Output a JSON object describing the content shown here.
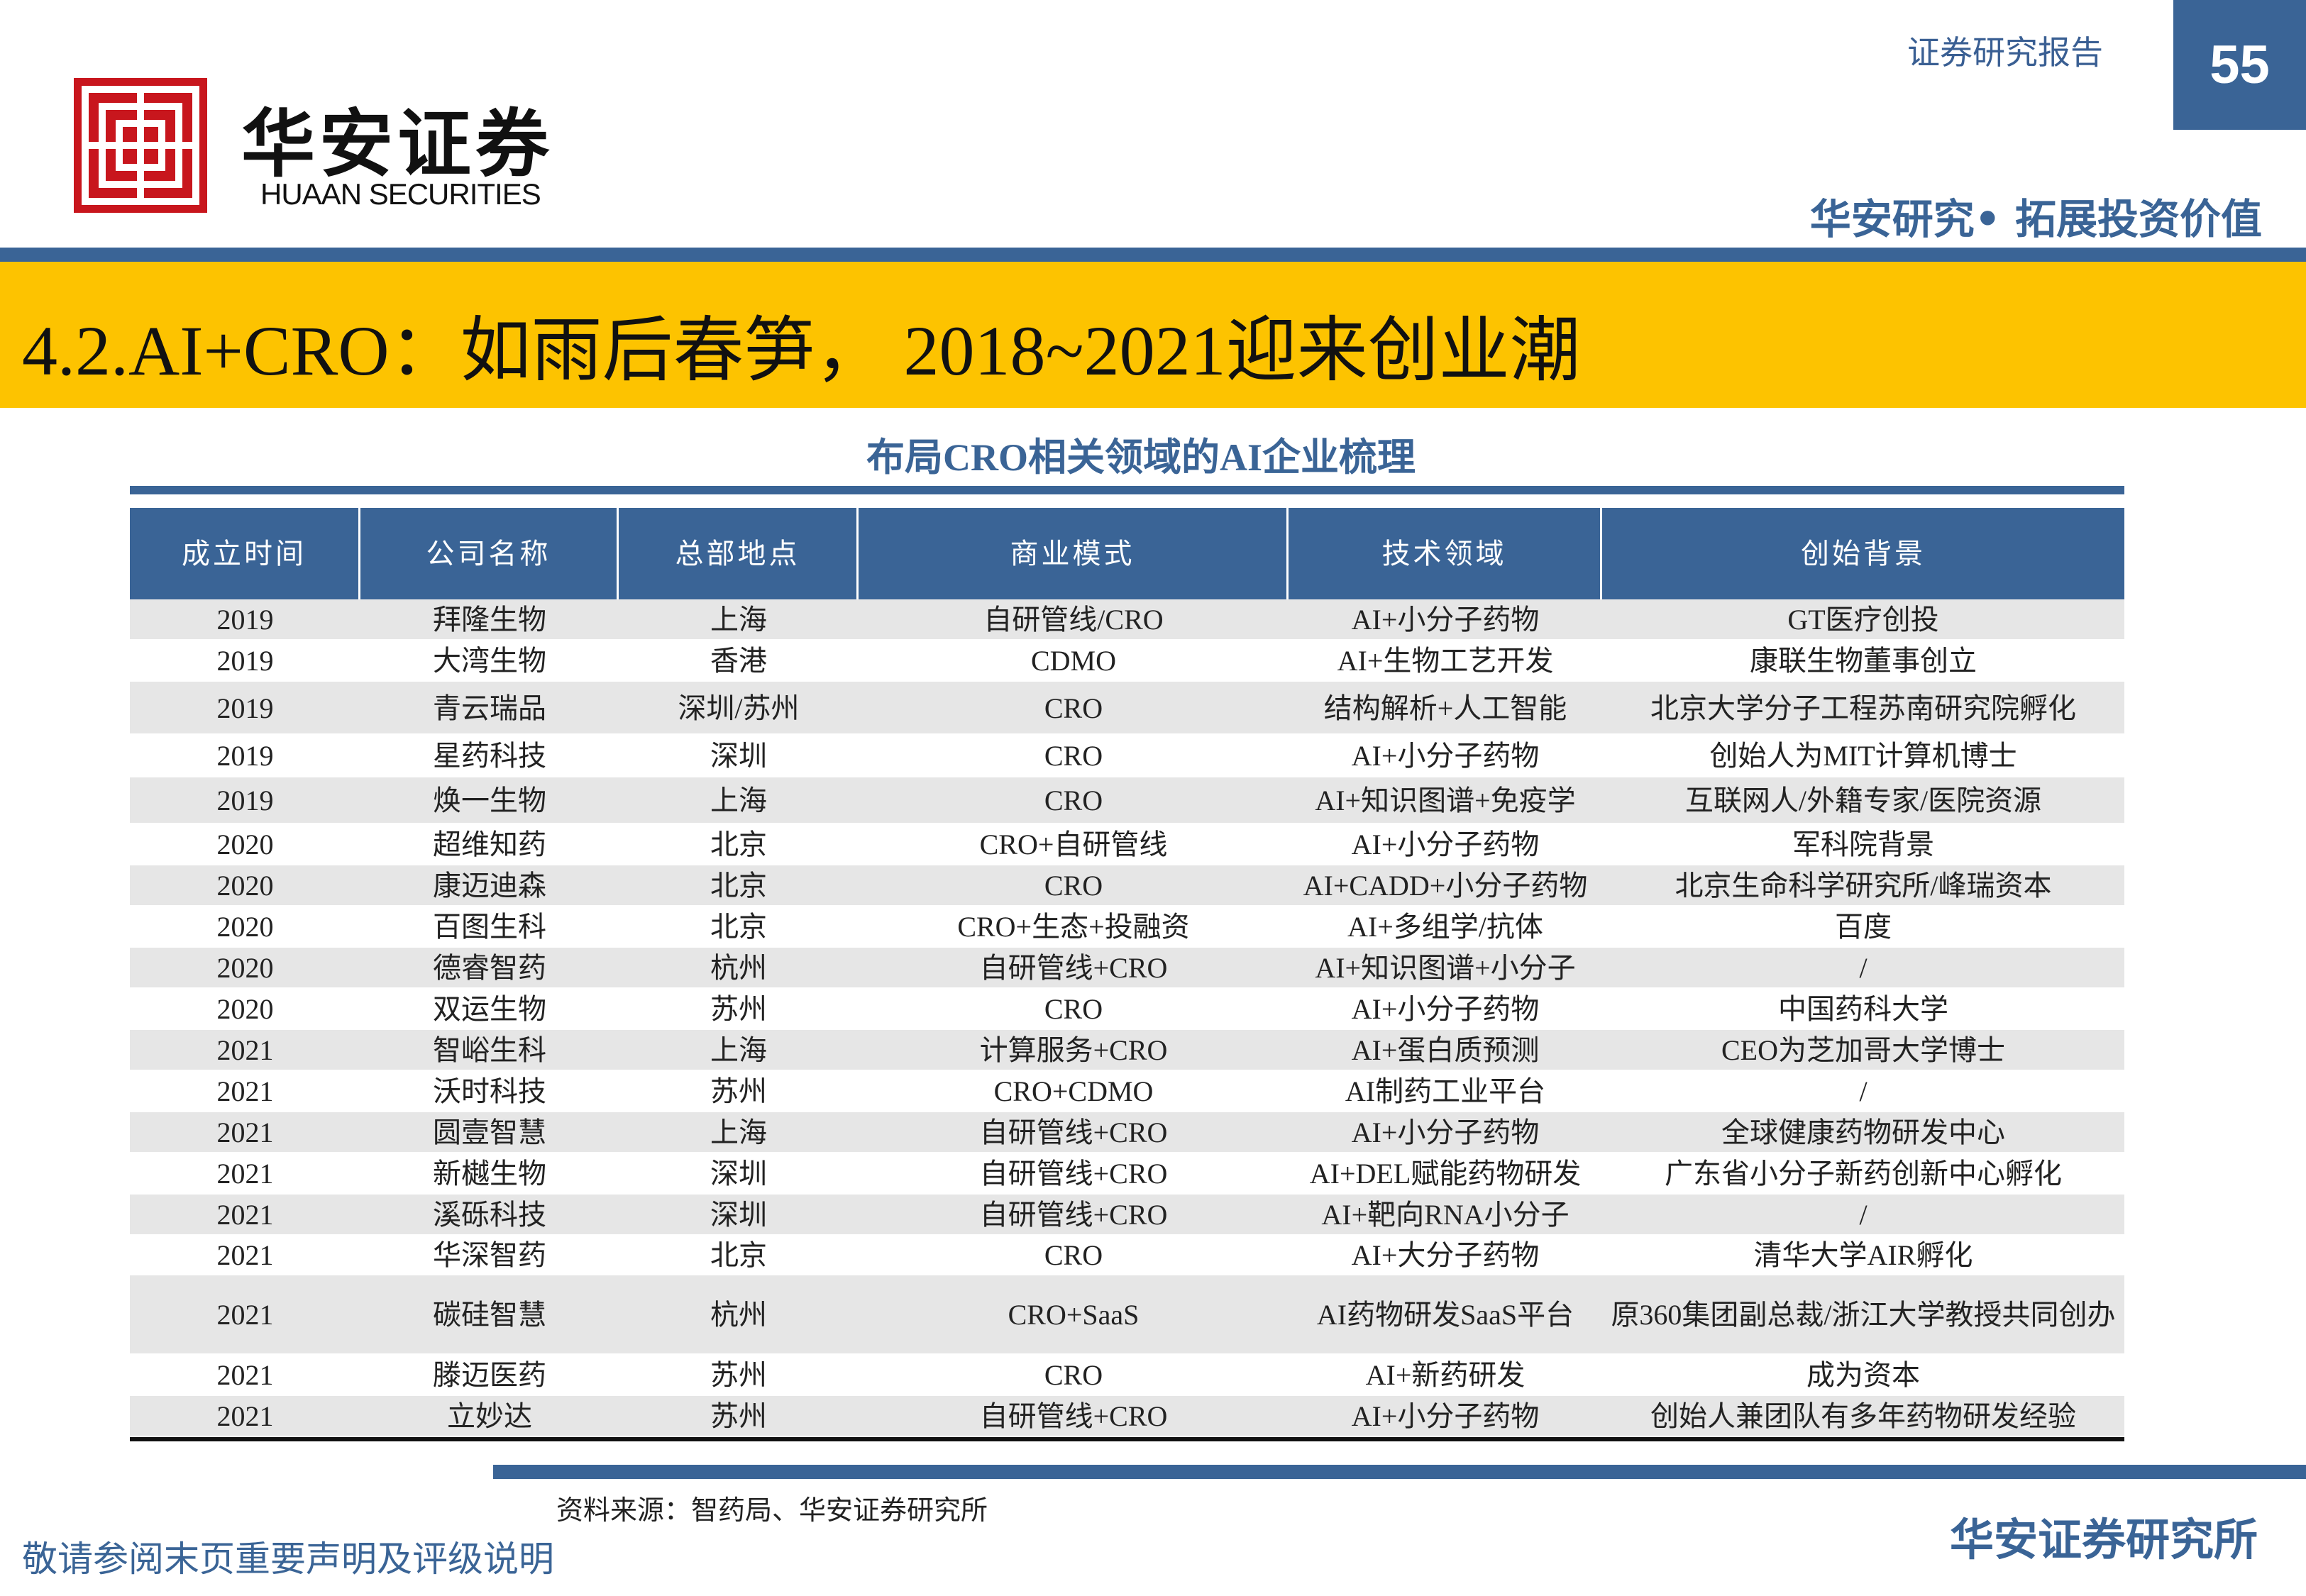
{
  "header": {
    "logo_cn": "华安证券",
    "logo_en": "HUAAN SECURITIES",
    "report_type": "证券研究报告",
    "page_number": "55",
    "slogan": "华安研究• 拓展投资价值"
  },
  "title": "4.2.AI+CRO：如雨后春笋， 2018~2021迎来创业潮",
  "table": {
    "caption": "布局CRO相关领域的AI企业梳理",
    "columns": [
      "成立时间",
      "公司名称",
      "总部地点",
      "商业模式",
      "技术领域",
      "创始背景"
    ],
    "rows": [
      [
        "2019",
        "拜隆生物",
        "上海",
        "自研管线/CRO",
        "AI+小分子药物",
        "GT医疗创投"
      ],
      [
        "2019",
        "大湾生物",
        "香港",
        "CDMO",
        "AI+生物工艺开发",
        "康联生物董事创立"
      ],
      [
        "2019",
        "青云瑞品",
        "深圳/苏州",
        "CRO",
        "结构解析+人工智能",
        "北京大学分子工程苏南研究院孵化"
      ],
      [
        "2019",
        "星药科技",
        "深圳",
        "CRO",
        "AI+小分子药物",
        "创始人为MIT计算机博士"
      ],
      [
        "2019",
        "焕一生物",
        "上海",
        "CRO",
        "AI+知识图谱+免疫学",
        "互联网人/外籍专家/医院资源"
      ],
      [
        "2020",
        "超维知药",
        "北京",
        "CRO+自研管线",
        "AI+小分子药物",
        "军科院背景"
      ],
      [
        "2020",
        "康迈迪森",
        "北京",
        "CRO",
        "AI+CADD+小分子药物",
        "北京生命科学研究所/峰瑞资本"
      ],
      [
        "2020",
        "百图生科",
        "北京",
        "CRO+生态+投融资",
        "AI+多组学/抗体",
        "百度"
      ],
      [
        "2020",
        "德睿智药",
        "杭州",
        "自研管线+CRO",
        "AI+知识图谱+小分子",
        "/"
      ],
      [
        "2020",
        "双运生物",
        "苏州",
        "CRO",
        "AI+小分子药物",
        "中国药科大学"
      ],
      [
        "2021",
        "智峪生科",
        "上海",
        "计算服务+CRO",
        "AI+蛋白质预测",
        "CEO为芝加哥大学博士"
      ],
      [
        "2021",
        "沃时科技",
        "苏州",
        "CRO+CDMO",
        "AI制药工业平台",
        "/"
      ],
      [
        "2021",
        "圆壹智慧",
        "上海",
        "自研管线+CRO",
        "AI+小分子药物",
        "全球健康药物研发中心"
      ],
      [
        "2021",
        "新樾生物",
        "深圳",
        "自研管线+CRO",
        "AI+DEL赋能药物研发",
        "广东省小分子新药创新中心孵化"
      ],
      [
        "2021",
        "溪砾科技",
        "深圳",
        "自研管线+CRO",
        "AI+靶向RNA小分子",
        "/"
      ],
      [
        "2021",
        "华深智药",
        "北京",
        "CRO",
        "AI+大分子药物",
        "清华大学AIR孵化"
      ],
      [
        "2021",
        "碳硅智慧",
        "杭州",
        "CRO+SaaS",
        "AI药物研发SaaS平台",
        "原360集团副总裁/浙江大学教授共同创办"
      ],
      [
        "2021",
        "滕迈医药",
        "苏州",
        "CRO",
        "AI+新药研发",
        "成为资本"
      ],
      [
        "2021",
        "立妙达",
        "苏州",
        "自研管线+CRO",
        "AI+小分子药物",
        "创始人兼团队有多年药物研发经验"
      ]
    ]
  },
  "source": "资料来源：智药局、华安证券研究所",
  "footer": {
    "disclaimer": "敬请参阅末页重要声明及评级说明",
    "institute": "华安证券研究所"
  }
}
